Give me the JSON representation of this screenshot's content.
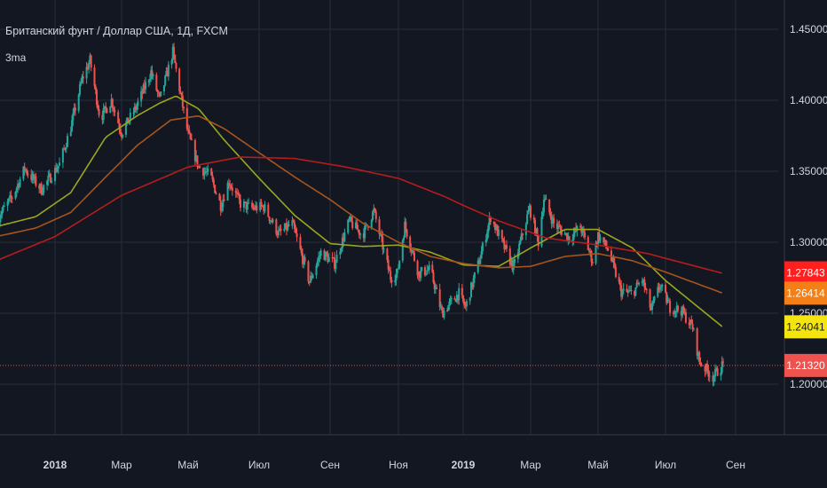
{
  "header": {
    "title": "Британский фунт / Доллар США, 1Д, FXCM",
    "indicator": "3ma"
  },
  "colors": {
    "background": "#131722",
    "grid": "#2a2e39",
    "axis_text": "#d1d4dc",
    "up_candle": "#26a69a",
    "down_candle": "#ef5350",
    "ma_fast": "#9aa61e",
    "ma_mid": "#a8541c",
    "ma_slow": "#b71c1c",
    "price_line": "#ef5350"
  },
  "chart_data": {
    "type": "candlestick",
    "symbol": "GBP/USD",
    "interval": "1D",
    "ylim": [
      1.1905,
      1.4675
    ],
    "y_ticks": [
      "1.45000",
      "1.40000",
      "1.35000",
      "1.30000",
      "1.25000",
      "1.20000"
    ],
    "x_ticks": [
      {
        "label": "2018",
        "date": "2018-01-01",
        "bold": true
      },
      {
        "label": "Мар",
        "date": "2018-03-01"
      },
      {
        "label": "Май",
        "date": "2018-05-01"
      },
      {
        "label": "Июл",
        "date": "2018-07-01"
      },
      {
        "label": "Сен",
        "date": "2018-09-01"
      },
      {
        "label": "Ноя",
        "date": "2018-11-01"
      },
      {
        "label": "2019",
        "date": "2019-01-01",
        "bold": true
      },
      {
        "label": "Мар",
        "date": "2019-03-01"
      },
      {
        "label": "Май",
        "date": "2019-05-01"
      },
      {
        "label": "Июл",
        "date": "2019-07-01"
      },
      {
        "label": "Сен",
        "date": "2019-09-01"
      }
    ],
    "price_keypoints": [
      [
        "2017-11-10",
        1.316
      ],
      [
        "2017-11-25",
        1.333
      ],
      [
        "2017-12-05",
        1.352
      ],
      [
        "2017-12-20",
        1.337
      ],
      [
        "2018-01-05",
        1.355
      ],
      [
        "2018-01-15",
        1.381
      ],
      [
        "2018-01-25",
        1.415
      ],
      [
        "2018-02-01",
        1.428
      ],
      [
        "2018-02-10",
        1.387
      ],
      [
        "2018-02-20",
        1.4
      ],
      [
        "2018-03-01",
        1.377
      ],
      [
        "2018-03-15",
        1.396
      ],
      [
        "2018-03-28",
        1.42
      ],
      [
        "2018-04-05",
        1.4
      ],
      [
        "2018-04-17",
        1.434
      ],
      [
        "2018-04-25",
        1.4
      ],
      [
        "2018-05-01",
        1.376
      ],
      [
        "2018-05-10",
        1.353
      ],
      [
        "2018-05-20",
        1.347
      ],
      [
        "2018-05-29",
        1.326
      ],
      [
        "2018-06-05",
        1.343
      ],
      [
        "2018-06-15",
        1.327
      ],
      [
        "2018-06-25",
        1.324
      ],
      [
        "2018-07-05",
        1.325
      ],
      [
        "2018-07-18",
        1.306
      ],
      [
        "2018-07-30",
        1.313
      ],
      [
        "2018-08-14",
        1.272
      ],
      [
        "2018-08-24",
        1.293
      ],
      [
        "2018-09-05",
        1.285
      ],
      [
        "2018-09-18",
        1.315
      ],
      [
        "2018-09-30",
        1.305
      ],
      [
        "2018-10-10",
        1.322
      ],
      [
        "2018-10-25",
        1.275
      ],
      [
        "2018-10-31",
        1.278
      ],
      [
        "2018-11-07",
        1.312
      ],
      [
        "2018-11-20",
        1.278
      ],
      [
        "2018-12-01",
        1.281
      ],
      [
        "2018-12-12",
        1.25
      ],
      [
        "2018-12-28",
        1.264
      ],
      [
        "2019-01-03",
        1.254
      ],
      [
        "2019-01-15",
        1.287
      ],
      [
        "2019-01-25",
        1.318
      ],
      [
        "2019-02-05",
        1.298
      ],
      [
        "2019-02-14",
        1.282
      ],
      [
        "2019-02-28",
        1.324
      ],
      [
        "2019-03-08",
        1.3
      ],
      [
        "2019-03-13",
        1.331
      ],
      [
        "2019-03-22",
        1.313
      ],
      [
        "2019-04-05",
        1.303
      ],
      [
        "2019-04-15",
        1.311
      ],
      [
        "2019-04-26",
        1.287
      ],
      [
        "2019-05-01",
        1.305
      ],
      [
        "2019-05-10",
        1.295
      ],
      [
        "2019-05-22",
        1.265
      ],
      [
        "2019-06-01",
        1.264
      ],
      [
        "2019-06-10",
        1.274
      ],
      [
        "2019-06-18",
        1.252
      ],
      [
        "2019-06-26",
        1.27
      ],
      [
        "2019-07-05",
        1.254
      ],
      [
        "2019-07-15",
        1.252
      ],
      [
        "2019-07-25",
        1.24
      ],
      [
        "2019-07-31",
        1.216
      ],
      [
        "2019-08-12",
        1.205
      ],
      [
        "2019-08-21",
        1.214
      ]
    ],
    "series": [
      {
        "type": "sma",
        "color": "#9aa61e",
        "keypoints": [
          [
            "2017-11-10",
            1.311
          ],
          [
            "2017-12-15",
            1.318
          ],
          [
            "2018-01-15",
            1.335
          ],
          [
            "2018-02-15",
            1.374
          ],
          [
            "2018-03-15",
            1.389
          ],
          [
            "2018-04-05",
            1.398
          ],
          [
            "2018-04-20",
            1.403
          ],
          [
            "2018-05-10",
            1.394
          ],
          [
            "2018-06-01",
            1.372
          ],
          [
            "2018-07-01",
            1.345
          ],
          [
            "2018-08-01",
            1.319
          ],
          [
            "2018-09-01",
            1.299
          ],
          [
            "2018-10-01",
            1.297
          ],
          [
            "2018-11-01",
            1.298
          ],
          [
            "2018-12-01",
            1.293
          ],
          [
            "2019-01-01",
            1.284
          ],
          [
            "2019-02-01",
            1.283
          ],
          [
            "2019-03-01",
            1.296
          ],
          [
            "2019-04-01",
            1.309
          ],
          [
            "2019-05-01",
            1.309
          ],
          [
            "2019-06-01",
            1.296
          ],
          [
            "2019-07-01",
            1.273
          ],
          [
            "2019-08-21",
            1.24
          ]
        ]
      },
      {
        "type": "sma",
        "color": "#a8541c",
        "keypoints": [
          [
            "2017-11-10",
            1.304
          ],
          [
            "2017-12-15",
            1.31
          ],
          [
            "2018-01-15",
            1.321
          ],
          [
            "2018-02-15",
            1.346
          ],
          [
            "2018-03-15",
            1.368
          ],
          [
            "2018-04-15",
            1.386
          ],
          [
            "2018-05-10",
            1.389
          ],
          [
            "2018-06-01",
            1.38
          ],
          [
            "2018-07-01",
            1.363
          ],
          [
            "2018-08-01",
            1.346
          ],
          [
            "2018-09-01",
            1.33
          ],
          [
            "2018-10-01",
            1.313
          ],
          [
            "2018-11-01",
            1.3
          ],
          [
            "2018-12-01",
            1.29
          ],
          [
            "2019-01-01",
            1.285
          ],
          [
            "2019-02-01",
            1.282
          ],
          [
            "2019-03-01",
            1.283
          ],
          [
            "2019-04-01",
            1.29
          ],
          [
            "2019-05-01",
            1.292
          ],
          [
            "2019-06-01",
            1.287
          ],
          [
            "2019-07-01",
            1.279
          ],
          [
            "2019-08-21",
            1.264
          ]
        ]
      },
      {
        "type": "sma",
        "color": "#b71c1c",
        "keypoints": [
          [
            "2017-11-10",
            1.287
          ],
          [
            "2018-01-01",
            1.304
          ],
          [
            "2018-03-01",
            1.333
          ],
          [
            "2018-05-01",
            1.353
          ],
          [
            "2018-06-15",
            1.36
          ],
          [
            "2018-08-01",
            1.359
          ],
          [
            "2018-09-15",
            1.353
          ],
          [
            "2018-11-01",
            1.345
          ],
          [
            "2018-12-15",
            1.332
          ],
          [
            "2019-02-01",
            1.315
          ],
          [
            "2019-03-15",
            1.303
          ],
          [
            "2019-05-01",
            1.298
          ],
          [
            "2019-06-15",
            1.292
          ],
          [
            "2019-08-21",
            1.278
          ]
        ]
      }
    ],
    "price_tags": [
      {
        "text": "1.27843",
        "value": 1.27843,
        "bg": "#ff1f1f",
        "fg": "#ffffff"
      },
      {
        "text": "1.26414",
        "value": 1.26414,
        "bg": "#f57f17",
        "fg": "#ffffff"
      },
      {
        "text": "1.24041",
        "value": 1.24041,
        "bg": "#f5e50f",
        "fg": "#131722"
      },
      {
        "text": "1.21320",
        "value": 1.2132,
        "bg": "#ef5350",
        "fg": "#ffffff"
      }
    ],
    "current_price": 1.2132,
    "grid": true,
    "legend": "top-left"
  }
}
